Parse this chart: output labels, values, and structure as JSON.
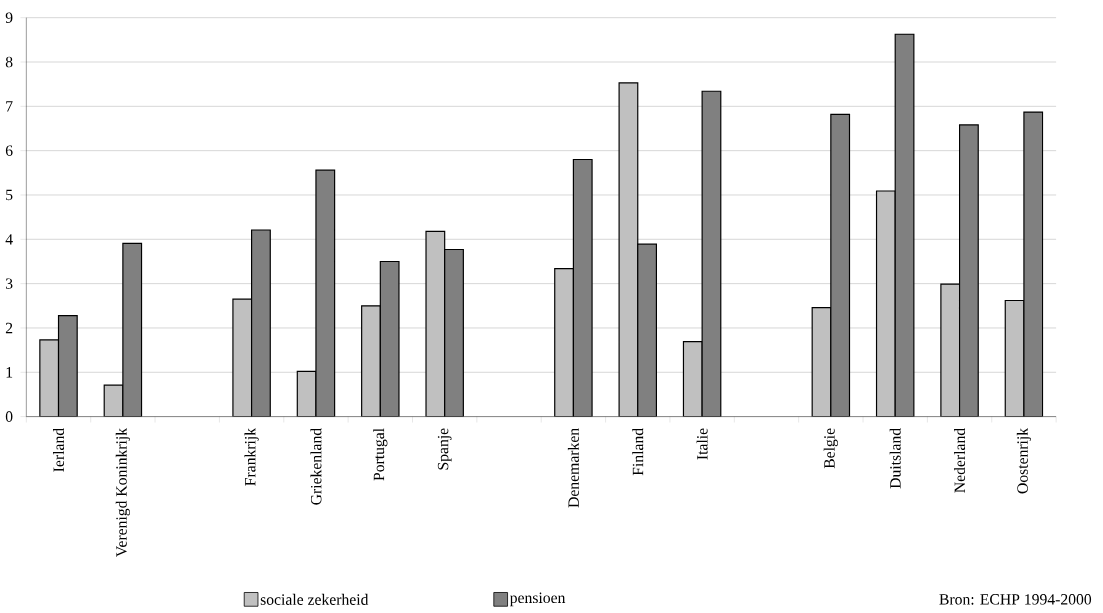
{
  "chart_data": {
    "type": "bar",
    "categories": [
      "Ierland",
      "Verenigd Koninkrijk",
      null,
      "Frankrijk",
      "Griekenland",
      "Portugal",
      "Spanje",
      null,
      "Denemarken",
      "Finland",
      "Italie",
      null,
      "Belgie",
      "Duitsland",
      "Nederland",
      "Oostenrijk"
    ],
    "series": [
      {
        "name": "sociale zekerheid",
        "color": "#c0c0c0",
        "values": [
          1.73,
          0.71,
          null,
          2.65,
          1.02,
          2.5,
          4.18,
          null,
          3.34,
          7.53,
          1.69,
          null,
          2.46,
          5.09,
          2.99,
          2.62
        ]
      },
      {
        "name": "pensioen",
        "color": "#808080",
        "values": [
          2.28,
          3.91,
          null,
          4.21,
          5.56,
          3.5,
          3.77,
          null,
          5.8,
          3.89,
          7.34,
          null,
          6.82,
          8.63,
          6.58,
          6.87
        ]
      }
    ],
    "ylim": [
      0,
      9
    ],
    "yticks": [
      0,
      1,
      2,
      3,
      4,
      5,
      6,
      7,
      8,
      9
    ],
    "grid": "y",
    "legend": "bottom",
    "annotations": [
      "Bron: ECHP 1994-2000"
    ]
  }
}
